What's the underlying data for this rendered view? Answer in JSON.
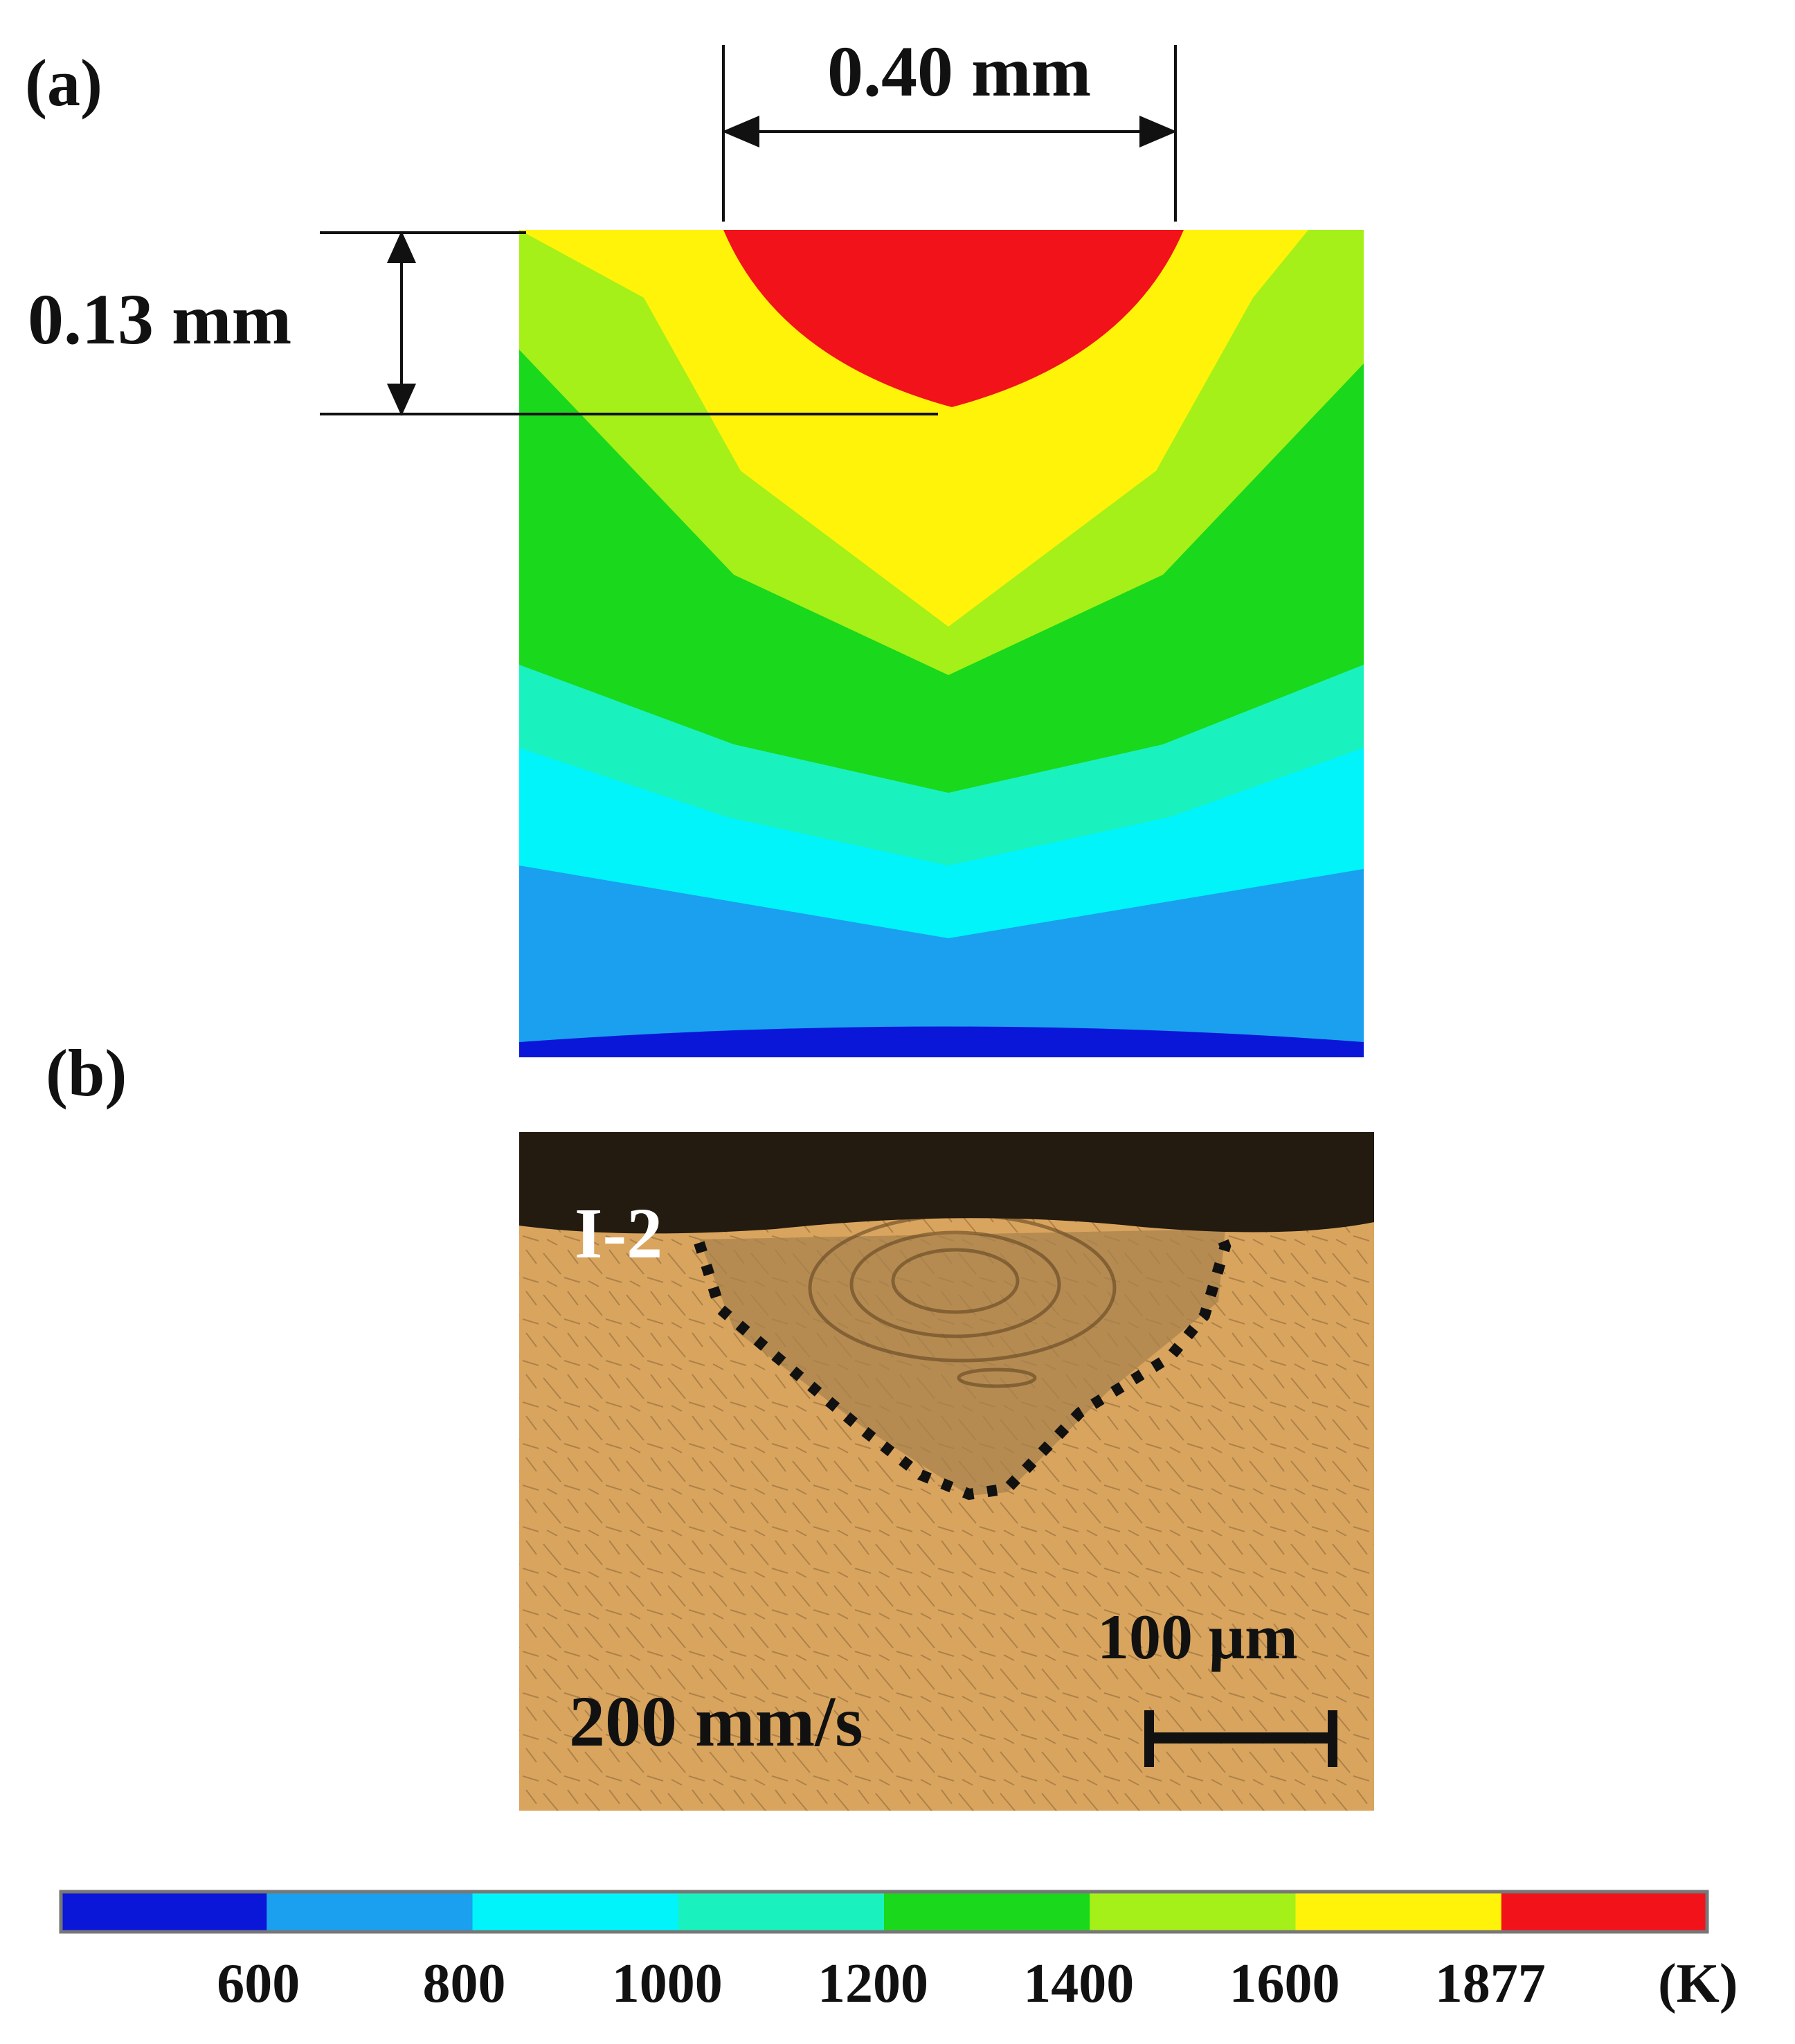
{
  "panel_a": {
    "label": "(a)",
    "width_dimension": "0.40 mm",
    "depth_dimension": "0.13 mm"
  },
  "panel_b": {
    "label": "(b)",
    "sample_id": "I-2",
    "scan_speed": "200 mm/s",
    "scale_bar": "100 μm"
  },
  "colorbar": {
    "unit": "(K)",
    "ticks": [
      "600",
      "800",
      "1000",
      "1200",
      "1400",
      "1600",
      "1877"
    ],
    "colors": [
      "#0a17d8",
      "#1aa0ee",
      "#00f4fa",
      "#19f2bf",
      "#1ad81c",
      "#a5f018",
      "#fff30a",
      "#f2121a"
    ]
  },
  "contour_colors": {
    "melt_pool": "#f2121a",
    "band_1": "#fff30a",
    "band_2": "#a5f018",
    "band_3": "#1ad81c",
    "band_4": "#19f2bf",
    "band_5": "#00f4fa",
    "band_6": "#1aa0ee",
    "band_7": "#0a17d8"
  },
  "micrograph_colors": {
    "top": "#231a10",
    "base": "#d9a55e",
    "pool": "#a8834d"
  }
}
